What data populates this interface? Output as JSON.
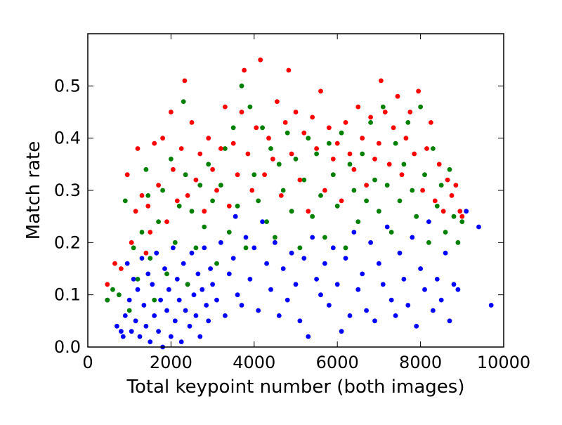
{
  "chart_data": {
    "type": "scatter",
    "title": "",
    "xlabel": "Total keypoint number (both images)",
    "ylabel": "Match rate",
    "xlim": [
      0,
      10000
    ],
    "ylim": [
      0,
      0.6
    ],
    "x_ticks": [
      0,
      2000,
      4000,
      6000,
      8000,
      10000
    ],
    "x_tick_labels": [
      "0",
      "2000",
      "4000",
      "6000",
      "8000",
      "10000"
    ],
    "y_ticks": [
      0.0,
      0.1,
      0.2,
      0.3,
      0.4,
      0.5
    ],
    "y_tick_labels": [
      "0.0",
      "0.1",
      "0.2",
      "0.3",
      "0.4",
      "0.5"
    ],
    "grid": false,
    "legend": "none",
    "series": [
      {
        "color": "#0000ff",
        "points": [
          [
            470,
            0.09
          ],
          [
            700,
            0.04
          ],
          [
            800,
            0.03
          ],
          [
            850,
            0.02
          ],
          [
            900,
            0.06
          ],
          [
            950,
            0.16
          ],
          [
            1000,
            0.09
          ],
          [
            1050,
            0.03
          ],
          [
            1100,
            0.13
          ],
          [
            1150,
            0.05
          ],
          [
            1200,
            0.11
          ],
          [
            1250,
            0.02
          ],
          [
            1300,
            0.17
          ],
          [
            1350,
            0.08
          ],
          [
            1400,
            0.04
          ],
          [
            1450,
            0.14
          ],
          [
            1500,
            0.01
          ],
          [
            1550,
            0.12
          ],
          [
            1600,
            0.06
          ],
          [
            1650,
            0.18
          ],
          [
            1700,
            0.03
          ],
          [
            1750,
            0.09
          ],
          [
            1800,
            0.0
          ],
          [
            1850,
            0.15
          ],
          [
            1900,
            0.07
          ],
          [
            1950,
            0.11
          ],
          [
            2000,
            0.02
          ],
          [
            2050,
            0.19
          ],
          [
            2100,
            0.05
          ],
          [
            2150,
            0.13
          ],
          [
            2200,
            0.09
          ],
          [
            2250,
            0.01
          ],
          [
            2300,
            0.16
          ],
          [
            2350,
            0.07
          ],
          [
            2400,
            0.12
          ],
          [
            2450,
            0.04
          ],
          [
            2500,
            0.18
          ],
          [
            2550,
            0.1
          ],
          [
            2600,
            0.06
          ],
          [
            2650,
            0.14
          ],
          [
            2700,
            0.02
          ],
          [
            2750,
            0.11
          ],
          [
            2800,
            0.19
          ],
          [
            2850,
            0.08
          ],
          [
            2900,
            0.05
          ],
          [
            2950,
            0.15
          ],
          [
            3000,
            0.12
          ],
          [
            3100,
            0.09
          ],
          [
            3200,
            0.2
          ],
          [
            3300,
            0.06
          ],
          [
            3400,
            0.14
          ],
          [
            3500,
            0.17
          ],
          [
            3550,
            0.25
          ],
          [
            3600,
            0.1
          ],
          [
            3700,
            0.08
          ],
          [
            3800,
            0.21
          ],
          [
            3900,
            0.13
          ],
          [
            4000,
            0.19
          ],
          [
            4100,
            0.07
          ],
          [
            4200,
            0.24
          ],
          [
            4300,
            0.16
          ],
          [
            4400,
            0.11
          ],
          [
            4500,
            0.2
          ],
          [
            4600,
            0.06
          ],
          [
            4700,
            0.15
          ],
          [
            4800,
            0.09
          ],
          [
            4900,
            0.18
          ],
          [
            5000,
            0.12
          ],
          [
            5100,
            0.05
          ],
          [
            5200,
            0.17
          ],
          [
            5300,
            0.02
          ],
          [
            5400,
            0.21
          ],
          [
            5500,
            0.13
          ],
          [
            5600,
            0.1
          ],
          [
            5700,
            0.16
          ],
          [
            5800,
            0.08
          ],
          [
            5900,
            0.19
          ],
          [
            6000,
            0.12
          ],
          [
            6100,
            0.03
          ],
          [
            6200,
            0.17
          ],
          [
            6300,
            0.06
          ],
          [
            6400,
            0.22
          ],
          [
            6500,
            0.11
          ],
          [
            6600,
            0.14
          ],
          [
            6700,
            0.07
          ],
          [
            6800,
            0.2
          ],
          [
            6900,
            0.05
          ],
          [
            7000,
            0.16
          ],
          [
            7100,
            0.12
          ],
          [
            7200,
            0.23
          ],
          [
            7300,
            0.09
          ],
          [
            7400,
            0.06
          ],
          [
            7500,
            0.18
          ],
          [
            7600,
            0.13
          ],
          [
            7700,
            0.08
          ],
          [
            7800,
            0.21
          ],
          [
            7900,
            0.04
          ],
          [
            8000,
            0.15
          ],
          [
            8100,
            0.11
          ],
          [
            8200,
            0.24
          ],
          [
            8300,
            0.07
          ],
          [
            8400,
            0.13
          ],
          [
            8500,
            0.09
          ],
          [
            8600,
            0.18
          ],
          [
            8700,
            0.05
          ],
          [
            8800,
            0.12
          ],
          [
            8900,
            0.11
          ],
          [
            9100,
            0.26
          ],
          [
            9400,
            0.23
          ],
          [
            9700,
            0.08
          ]
        ]
      },
      {
        "color": "#008000",
        "points": [
          [
            470,
            0.09
          ],
          [
            600,
            0.11
          ],
          [
            750,
            0.1
          ],
          [
            900,
            0.28
          ],
          [
            1000,
            0.07
          ],
          [
            1100,
            0.19
          ],
          [
            1200,
            0.13
          ],
          [
            1300,
            0.22
          ],
          [
            1400,
            0.34
          ],
          [
            1450,
            0.29
          ],
          [
            1500,
            0.17
          ],
          [
            1600,
            0.09
          ],
          [
            1700,
            0.24
          ],
          [
            1800,
            0.3
          ],
          [
            1900,
            0.14
          ],
          [
            2000,
            0.36
          ],
          [
            2100,
            0.2
          ],
          [
            2200,
            0.27
          ],
          [
            2300,
            0.47
          ],
          [
            2350,
            0.33
          ],
          [
            2400,
            0.12
          ],
          [
            2500,
            0.26
          ],
          [
            2600,
            0.19
          ],
          [
            2700,
            0.31
          ],
          [
            2800,
            0.23
          ],
          [
            2900,
            0.35
          ],
          [
            3000,
            0.28
          ],
          [
            3100,
            0.16
          ],
          [
            3200,
            0.31
          ],
          [
            3300,
            0.38
          ],
          [
            3400,
            0.22
          ],
          [
            3500,
            0.42
          ],
          [
            3600,
            0.27
          ],
          [
            3700,
            0.5
          ],
          [
            3800,
            0.19
          ],
          [
            3900,
            0.46
          ],
          [
            4000,
            0.33
          ],
          [
            4100,
            0.28
          ],
          [
            4200,
            0.42
          ],
          [
            4300,
            0.24
          ],
          [
            4400,
            0.38
          ],
          [
            4500,
            0.21
          ],
          [
            4600,
            0.35
          ],
          [
            4700,
            0.3
          ],
          [
            4800,
            0.41
          ],
          [
            4900,
            0.26
          ],
          [
            5000,
            0.36
          ],
          [
            5100,
            0.19
          ],
          [
            5200,
            0.32
          ],
          [
            5300,
            0.4
          ],
          [
            5400,
            0.25
          ],
          [
            5500,
            0.37
          ],
          [
            5600,
            0.29
          ],
          [
            5700,
            0.21
          ],
          [
            5800,
            0.39
          ],
          [
            5900,
            0.33
          ],
          [
            6000,
            0.27
          ],
          [
            6100,
            0.41
          ],
          [
            6200,
            0.19
          ],
          [
            6300,
            0.35
          ],
          [
            6400,
            0.3
          ],
          [
            6500,
            0.24
          ],
          [
            6600,
            0.37
          ],
          [
            6700,
            0.28
          ],
          [
            6800,
            0.43
          ],
          [
            6900,
            0.32
          ],
          [
            7000,
            0.26
          ],
          [
            7100,
            0.46
          ],
          [
            7200,
            0.31
          ],
          [
            7300,
            0.22
          ],
          [
            7400,
            0.39
          ],
          [
            7500,
            0.28
          ],
          [
            7600,
            0.35
          ],
          [
            7700,
            0.43
          ],
          [
            7800,
            0.3
          ],
          [
            7900,
            0.25
          ],
          [
            8000,
            0.46
          ],
          [
            8100,
            0.33
          ],
          [
            8200,
            0.2
          ],
          [
            8300,
            0.38
          ],
          [
            8400,
            0.27
          ],
          [
            8500,
            0.31
          ],
          [
            8600,
            0.22
          ],
          [
            8700,
            0.34
          ],
          [
            8800,
            0.25
          ],
          [
            8900,
            0.2
          ],
          [
            9000,
            0.24
          ]
        ]
      },
      {
        "color": "#ff0000",
        "points": [
          [
            470,
            0.12
          ],
          [
            650,
            0.16
          ],
          [
            800,
            0.15
          ],
          [
            950,
            0.33
          ],
          [
            1050,
            0.2
          ],
          [
            1150,
            0.26
          ],
          [
            1200,
            0.38
          ],
          [
            1300,
            0.29
          ],
          [
            1400,
            0.18
          ],
          [
            1450,
            0.27
          ],
          [
            1500,
            0.22
          ],
          [
            1600,
            0.39
          ],
          [
            1700,
            0.31
          ],
          [
            1800,
            0.4
          ],
          [
            1900,
            0.24
          ],
          [
            2000,
            0.45
          ],
          [
            2050,
            0.34
          ],
          [
            2150,
            0.28
          ],
          [
            2250,
            0.38
          ],
          [
            2330,
            0.51
          ],
          [
            2400,
            0.29
          ],
          [
            2500,
            0.43
          ],
          [
            2600,
            0.32
          ],
          [
            2700,
            0.37
          ],
          [
            2800,
            0.26
          ],
          [
            2900,
            0.4
          ],
          [
            3000,
            0.34
          ],
          [
            3100,
            0.3
          ],
          [
            3200,
            0.38
          ],
          [
            3300,
            0.46
          ],
          [
            3400,
            0.27
          ],
          [
            3500,
            0.39
          ],
          [
            3600,
            0.33
          ],
          [
            3700,
            0.45
          ],
          [
            3760,
            0.53
          ],
          [
            3850,
            0.37
          ],
          [
            3950,
            0.3
          ],
          [
            4050,
            0.42
          ],
          [
            4150,
            0.55
          ],
          [
            4250,
            0.33
          ],
          [
            4350,
            0.4
          ],
          [
            4450,
            0.36
          ],
          [
            4550,
            0.47
          ],
          [
            4650,
            0.29
          ],
          [
            4750,
            0.43
          ],
          [
            4830,
            0.53
          ],
          [
            4900,
            0.37
          ],
          [
            5000,
            0.45
          ],
          [
            5100,
            0.32
          ],
          [
            5200,
            0.41
          ],
          [
            5300,
            0.26
          ],
          [
            5400,
            0.44
          ],
          [
            5500,
            0.38
          ],
          [
            5600,
            0.49
          ],
          [
            5700,
            0.3
          ],
          [
            5800,
            0.42
          ],
          [
            5900,
            0.36
          ],
          [
            6000,
            0.39
          ],
          [
            6100,
            0.28
          ],
          [
            6200,
            0.43
          ],
          [
            6300,
            0.37
          ],
          [
            6400,
            0.34
          ],
          [
            6500,
            0.46
          ],
          [
            6600,
            0.4
          ],
          [
            6700,
            0.31
          ],
          [
            6800,
            0.44
          ],
          [
            6900,
            0.36
          ],
          [
            7000,
            0.39
          ],
          [
            7050,
            0.51
          ],
          [
            7150,
            0.45
          ],
          [
            7250,
            0.35
          ],
          [
            7350,
            0.42
          ],
          [
            7450,
            0.48
          ],
          [
            7550,
            0.33
          ],
          [
            7650,
            0.4
          ],
          [
            7750,
            0.45
          ],
          [
            7850,
            0.37
          ],
          [
            7950,
            0.49
          ],
          [
            8050,
            0.3
          ],
          [
            8150,
            0.38
          ],
          [
            8250,
            0.43
          ],
          [
            8350,
            0.28
          ],
          [
            8450,
            0.35
          ],
          [
            8550,
            0.26
          ],
          [
            8650,
            0.32
          ],
          [
            8750,
            0.29
          ],
          [
            8850,
            0.31
          ],
          [
            8950,
            0.26
          ],
          [
            9000,
            0.25
          ]
        ]
      }
    ]
  }
}
